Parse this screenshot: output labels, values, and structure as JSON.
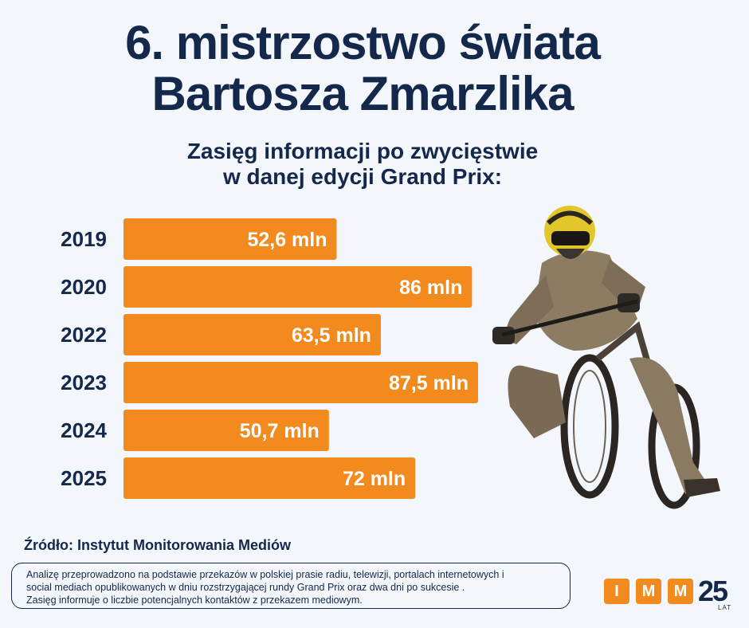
{
  "header": {
    "title_line1": "6. mistrzostwo świata",
    "title_line2": "Bartosza Zmarzlika",
    "subtitle_line1": "Zasięg informacji po zwycięstwie",
    "subtitle_line2": "w danej edycji Grand Prix:"
  },
  "chart_data": {
    "type": "bar",
    "orientation": "horizontal",
    "categories": [
      "2019",
      "2020",
      "2022",
      "2023",
      "2024",
      "2025"
    ],
    "values": [
      52.6,
      86,
      63.5,
      87.5,
      50.7,
      72
    ],
    "value_labels": [
      "52,6 mln",
      "86 mln",
      "63,5 mln",
      "87,5 mln",
      "50,7 mln",
      "72 mln"
    ],
    "bar_color": "#f28a1e",
    "title": "",
    "xlabel": "",
    "ylabel": "",
    "xlim": [
      0,
      87.5
    ],
    "grid": false,
    "legend": "none"
  },
  "footer": {
    "source": "Źródło: Instytut Monitorowania Mediów",
    "note_line1": "Analizę przeprowadzono na podstawie przekazów w polskiej prasie radiu, telewizji, portalach internetowych i",
    "note_line2": "social mediach opublikowanych w dniu rozstrzygającej rundy Grand Prix oraz dwa dni po sukcesie .",
    "note_line3": "Zasięg informuje o liczbie potencjalnych kontaktów z przekazem mediowym."
  },
  "logo": {
    "letters": [
      "I",
      "M",
      "M"
    ],
    "anniversary_number": "25",
    "anniversary_word": "LAT"
  },
  "colors": {
    "navy": "#14284b",
    "orange": "#f28a1e",
    "background": "#f3f6fa"
  }
}
